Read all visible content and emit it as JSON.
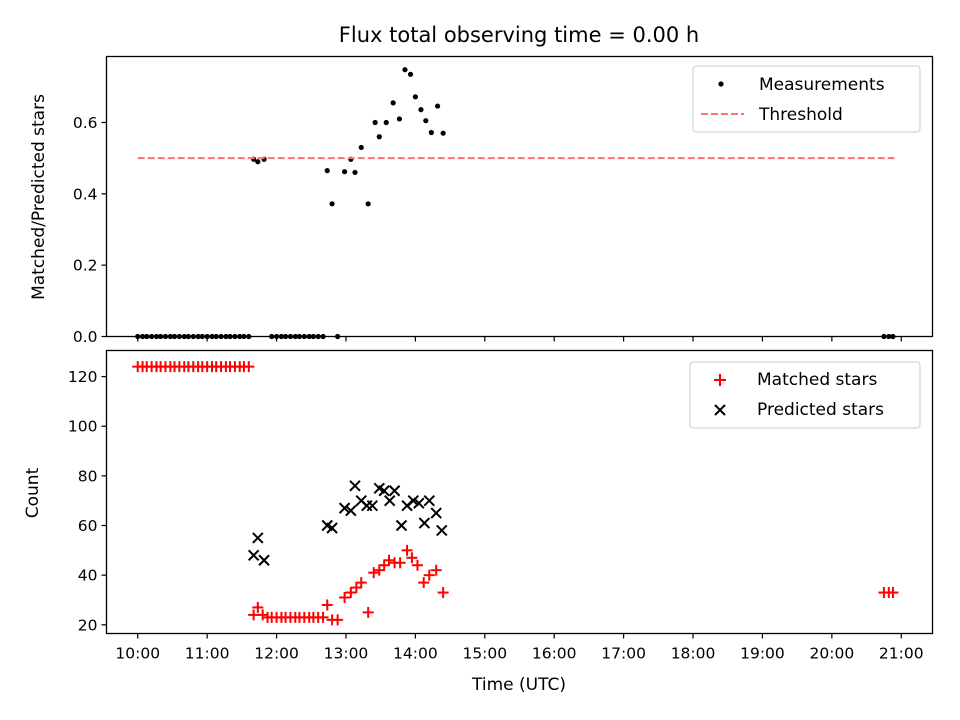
{
  "chart_data": [
    {
      "type": "scatter",
      "title": "Flux total observing time = 0.00 h",
      "xlabel": "",
      "ylabel": "Matched/Predicted stars",
      "xlim": [
        9.55,
        21.45
      ],
      "ylim": [
        0.0,
        0.785
      ],
      "yticks": [
        0.0,
        0.2,
        0.4,
        0.6
      ],
      "ytick_labels": [
        "0.0",
        "0.2",
        "0.4",
        "0.6"
      ],
      "xticks": [
        10,
        11,
        12,
        13,
        14,
        15,
        16,
        17,
        18,
        19,
        20,
        21
      ],
      "legend_position": "top-right",
      "series": [
        {
          "name": "Measurements",
          "marker": "dot",
          "color": "#000000",
          "points": [
            [
              10.0,
              0
            ],
            [
              10.07,
              0
            ],
            [
              10.13,
              0
            ],
            [
              10.2,
              0
            ],
            [
              10.27,
              0
            ],
            [
              10.33,
              0
            ],
            [
              10.4,
              0
            ],
            [
              10.47,
              0
            ],
            [
              10.53,
              0
            ],
            [
              10.6,
              0
            ],
            [
              10.67,
              0
            ],
            [
              10.73,
              0
            ],
            [
              10.8,
              0
            ],
            [
              10.87,
              0
            ],
            [
              10.93,
              0
            ],
            [
              11.0,
              0
            ],
            [
              11.07,
              0
            ],
            [
              11.13,
              0
            ],
            [
              11.2,
              0
            ],
            [
              11.27,
              0
            ],
            [
              11.33,
              0
            ],
            [
              11.4,
              0
            ],
            [
              11.47,
              0
            ],
            [
              11.53,
              0
            ],
            [
              11.6,
              0
            ],
            [
              11.67,
              0.497
            ],
            [
              11.73,
              0.49
            ],
            [
              11.82,
              0.497
            ],
            [
              11.93,
              0
            ],
            [
              12.0,
              0
            ],
            [
              12.07,
              0
            ],
            [
              12.13,
              0
            ],
            [
              12.2,
              0
            ],
            [
              12.27,
              0
            ],
            [
              12.33,
              0
            ],
            [
              12.4,
              0
            ],
            [
              12.47,
              0
            ],
            [
              12.53,
              0
            ],
            [
              12.6,
              0
            ],
            [
              12.67,
              0
            ],
            [
              12.73,
              0.465
            ],
            [
              12.8,
              0.372
            ],
            [
              12.88,
              0
            ],
            [
              12.98,
              0.462
            ],
            [
              13.07,
              0.497
            ],
            [
              13.13,
              0.46
            ],
            [
              13.22,
              0.53
            ],
            [
              13.32,
              0.372
            ],
            [
              13.42,
              0.6
            ],
            [
              13.48,
              0.56
            ],
            [
              13.58,
              0.6
            ],
            [
              13.68,
              0.655
            ],
            [
              13.77,
              0.61
            ],
            [
              13.85,
              0.748
            ],
            [
              13.93,
              0.735
            ],
            [
              14.0,
              0.672
            ],
            [
              14.08,
              0.636
            ],
            [
              14.15,
              0.605
            ],
            [
              14.23,
              0.572
            ],
            [
              14.32,
              0.646
            ],
            [
              14.4,
              0.57
            ],
            [
              20.75,
              0
            ],
            [
              20.82,
              0
            ],
            [
              20.88,
              0
            ]
          ]
        },
        {
          "name": "Threshold",
          "marker": "dashed-line",
          "color": "#ff7070",
          "x": [
            10.0,
            20.9
          ],
          "y": [
            0.5,
            0.5
          ]
        }
      ]
    },
    {
      "type": "scatter",
      "title": "",
      "xlabel": "Time (UTC)",
      "ylabel": "Count",
      "xlim": [
        9.55,
        21.45
      ],
      "ylim": [
        16.5,
        130.5
      ],
      "yticks": [
        20,
        40,
        60,
        80,
        100,
        120
      ],
      "xticks": [
        10,
        11,
        12,
        13,
        14,
        15,
        16,
        17,
        18,
        19,
        20,
        21
      ],
      "xtick_labels": [
        "10:00",
        "11:00",
        "12:00",
        "13:00",
        "14:00",
        "15:00",
        "16:00",
        "17:00",
        "18:00",
        "19:00",
        "20:00",
        "21:00"
      ],
      "legend_position": "top-right",
      "series": [
        {
          "name": "Matched stars",
          "marker": "plus",
          "color": "#ff0000",
          "points": [
            [
              10.0,
              124
            ],
            [
              10.07,
              124
            ],
            [
              10.13,
              124
            ],
            [
              10.2,
              124
            ],
            [
              10.27,
              124
            ],
            [
              10.33,
              124
            ],
            [
              10.4,
              124
            ],
            [
              10.47,
              124
            ],
            [
              10.53,
              124
            ],
            [
              10.6,
              124
            ],
            [
              10.67,
              124
            ],
            [
              10.73,
              124
            ],
            [
              10.8,
              124
            ],
            [
              10.87,
              124
            ],
            [
              10.93,
              124
            ],
            [
              11.0,
              124
            ],
            [
              11.07,
              124
            ],
            [
              11.13,
              124
            ],
            [
              11.2,
              124
            ],
            [
              11.27,
              124
            ],
            [
              11.33,
              124
            ],
            [
              11.4,
              124
            ],
            [
              11.47,
              124
            ],
            [
              11.53,
              124
            ],
            [
              11.6,
              124
            ],
            [
              11.67,
              24
            ],
            [
              11.73,
              27
            ],
            [
              11.8,
              24
            ],
            [
              11.87,
              23
            ],
            [
              11.93,
              23
            ],
            [
              12.0,
              23
            ],
            [
              12.07,
              23
            ],
            [
              12.13,
              23
            ],
            [
              12.2,
              23
            ],
            [
              12.27,
              23
            ],
            [
              12.33,
              23
            ],
            [
              12.4,
              23
            ],
            [
              12.47,
              23
            ],
            [
              12.53,
              23
            ],
            [
              12.6,
              23
            ],
            [
              12.67,
              23
            ],
            [
              12.73,
              28
            ],
            [
              12.8,
              22
            ],
            [
              12.88,
              22
            ],
            [
              12.98,
              31
            ],
            [
              13.07,
              33
            ],
            [
              13.15,
              35
            ],
            [
              13.22,
              37
            ],
            [
              13.32,
              25
            ],
            [
              13.4,
              41
            ],
            [
              13.48,
              42
            ],
            [
              13.55,
              44
            ],
            [
              13.62,
              46
            ],
            [
              13.7,
              45
            ],
            [
              13.78,
              45
            ],
            [
              13.88,
              50
            ],
            [
              13.95,
              47
            ],
            [
              14.03,
              44
            ],
            [
              14.12,
              37
            ],
            [
              14.2,
              40
            ],
            [
              14.3,
              42
            ],
            [
              14.4,
              33
            ],
            [
              20.75,
              33
            ],
            [
              20.82,
              33
            ],
            [
              20.88,
              33
            ]
          ]
        },
        {
          "name": "Predicted stars",
          "marker": "x",
          "color": "#000000",
          "points": [
            [
              11.67,
              48
            ],
            [
              11.73,
              55
            ],
            [
              11.82,
              46
            ],
            [
              12.73,
              60
            ],
            [
              12.8,
              59
            ],
            [
              12.98,
              67
            ],
            [
              13.07,
              66
            ],
            [
              13.13,
              76
            ],
            [
              13.22,
              70
            ],
            [
              13.3,
              68
            ],
            [
              13.38,
              68
            ],
            [
              13.48,
              75
            ],
            [
              13.55,
              74
            ],
            [
              13.63,
              70
            ],
            [
              13.7,
              74
            ],
            [
              13.8,
              60
            ],
            [
              13.88,
              68
            ],
            [
              13.97,
              70
            ],
            [
              14.05,
              69
            ],
            [
              14.13,
              61
            ],
            [
              14.2,
              70
            ],
            [
              14.3,
              65
            ],
            [
              14.38,
              58
            ]
          ]
        }
      ]
    }
  ]
}
